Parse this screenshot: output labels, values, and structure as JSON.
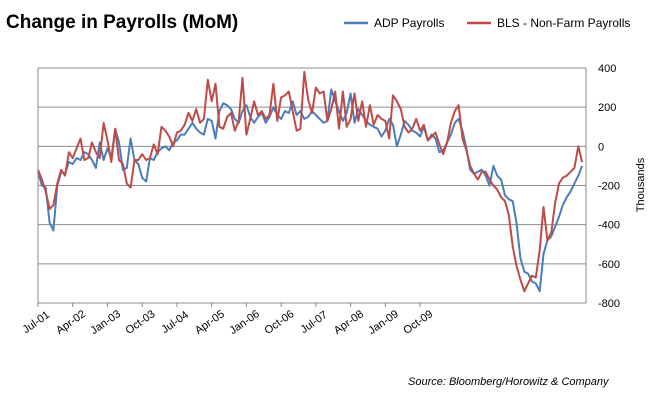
{
  "chart_data": {
    "type": "line",
    "title": "Change in Payrolls (MoM)",
    "ylabel": "Thousands",
    "xlabel": "",
    "ylim": [
      -800,
      400
    ],
    "yticks": [
      400,
      200,
      0,
      -200,
      -400,
      -600,
      -800
    ],
    "xtick_labels": [
      "Jul-01",
      "Apr-02",
      "Jan-03",
      "Oct-03",
      "Jul-04",
      "Apr-05",
      "Jan-06",
      "Oct-06",
      "Jul-07",
      "Apr-08",
      "Jan-09",
      "Oct-09"
    ],
    "grid": "horizontal",
    "legend_position": "top-right",
    "source": "Source: Bloomberg/Horowitz & Company",
    "x_start": "2001-07",
    "x_end": "2009-12",
    "series": [
      {
        "name": "ADP Payrolls",
        "color": "#4a7ebb",
        "values": [
          -130,
          -200,
          -210,
          -390,
          -430,
          -200,
          -130,
          -140,
          -80,
          -90,
          -60,
          -70,
          -30,
          -40,
          -70,
          -110,
          20,
          -70,
          -10,
          -60,
          90,
          20,
          -120,
          -110,
          40,
          -70,
          -90,
          -160,
          -180,
          -60,
          -70,
          -30,
          -10,
          0,
          -20,
          20,
          30,
          60,
          60,
          90,
          120,
          90,
          70,
          60,
          140,
          130,
          40,
          180,
          220,
          210,
          190,
          140,
          120,
          180,
          210,
          150,
          120,
          150,
          170,
          120,
          150,
          200,
          160,
          140,
          180,
          170,
          230,
          160,
          180,
          140,
          150,
          180,
          160,
          140,
          120,
          130,
          290,
          230,
          180,
          130,
          170,
          270,
          120,
          190,
          160,
          130,
          110,
          100,
          90,
          50,
          80,
          140,
          110,
          0,
          60,
          130,
          110,
          80,
          70,
          50,
          100,
          30,
          60,
          40,
          -30,
          -20,
          20,
          60,
          120,
          140,
          80,
          -10,
          -120,
          -140,
          -130,
          -120,
          -150,
          -200,
          -100,
          -150,
          -170,
          -250,
          -270,
          -280,
          -390,
          -570,
          -640,
          -650,
          -690,
          -700,
          -740,
          -550,
          -480,
          -460,
          -410,
          -360,
          -300,
          -260,
          -230,
          -190,
          -150,
          -100
        ]
      },
      {
        "name": "BLS - Non-Farm Payrolls",
        "color": "#be4b48",
        "values": [
          -120,
          -170,
          -230,
          -320,
          -300,
          -190,
          -120,
          -150,
          -30,
          -60,
          -10,
          40,
          -70,
          -60,
          20,
          -30,
          -60,
          120,
          30,
          -80,
          90,
          -70,
          -90,
          -190,
          -210,
          -70,
          -70,
          -40,
          -70,
          -60,
          10,
          -40,
          100,
          80,
          50,
          0,
          70,
          80,
          110,
          170,
          130,
          190,
          120,
          140,
          340,
          230,
          320,
          100,
          90,
          150,
          170,
          80,
          130,
          350,
          60,
          140,
          230,
          160,
          180,
          140,
          160,
          320,
          130,
          250,
          260,
          280,
          180,
          80,
          90,
          380,
          240,
          170,
          300,
          270,
          280,
          130,
          190,
          280,
          90,
          280,
          100,
          140,
          270,
          130,
          230,
          100,
          210,
          110,
          160,
          140,
          130,
          40,
          260,
          230,
          190,
          100,
          70,
          90,
          140,
          80,
          110,
          30,
          50,
          70,
          10,
          -40,
          20,
          120,
          180,
          210,
          40,
          -20,
          -100,
          -140,
          -170,
          -130,
          -130,
          -170,
          -200,
          -220,
          -260,
          -280,
          -350,
          -510,
          -610,
          -680,
          -740,
          -700,
          -660,
          -670,
          -530,
          -310,
          -480,
          -440,
          -290,
          -190,
          -160,
          -150,
          -130,
          -110,
          0,
          -80
        ]
      }
    ]
  }
}
